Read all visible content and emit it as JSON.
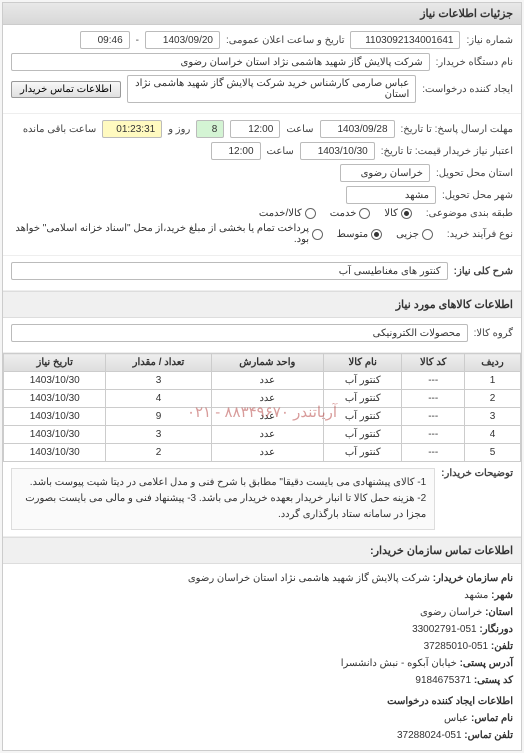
{
  "panel_title": "جزئیات اطلاعات نیاز",
  "header": {
    "req_no_label": "شماره نیاز:",
    "req_no": "1103092134001641",
    "ann_dt_label": "تاریخ و ساعت اعلان عمومی:",
    "ann_date": "1403/09/20",
    "ann_time": "09:46",
    "buyer_label": "نام دستگاه خریدار:",
    "buyer": "شرکت پالایش گاز شهید هاشمی نژاد   استان خراسان رضوی",
    "requester_label": "ایجاد کننده درخواست:",
    "requester": "عباس صارمی کارشناس خرید  شرکت پالایش گاز شهید هاشمی نژاد   استان",
    "contact_btn": "اطلاعات تماس خریدار"
  },
  "deadlines": {
    "send_label": "مهلت ارسال پاسخ: تا تاریخ:",
    "send_date": "1403/09/28",
    "time_lbl": "ساعت",
    "send_time": "12:00",
    "days": "8",
    "days_lbl": "روز و",
    "remain": "01:23:31",
    "remain_lbl": "ساعت باقی مانده",
    "valid_label": "اعتبار نیاز خریدار قیمت: تا تاریخ:",
    "valid_date": "1403/10/30",
    "valid_time": "12:00"
  },
  "loc": {
    "prov_lbl": "استان محل تحویل:",
    "prov": "خراسان رضوی",
    "city_lbl": "شهر محل تحویل:",
    "city": "مشهد"
  },
  "subject": {
    "pack_lbl": "طبقه بندی موضوعی:",
    "r1": "کالا",
    "r2": "خدمت",
    "r3": "کالا/خدمت",
    "proc_lbl": "نوع فرآیند خرید:",
    "p1": "جزیی",
    "p2": "متوسط",
    "p3": "پرداخت تمام یا بخشی از مبلغ خرید،از محل \"اسناد خزانه اسلامی\" خواهد بود."
  },
  "desc": {
    "lbl": "شرح کلی نیاز:",
    "val": "کنتور های مغناطیسی آب"
  },
  "items_title": "اطلاعات کالاهای مورد نیاز",
  "group": {
    "lbl": "گروه کالا:",
    "val": "محصولات الکترونیکی"
  },
  "table": {
    "cols": [
      "ردیف",
      "کد کالا",
      "نام کالا",
      "واحد شمارش",
      "تعداد / مقدار",
      "تاریخ نیاز"
    ],
    "rows": [
      [
        "1",
        "---",
        "کنتور آب",
        "عدد",
        "3",
        "1403/10/30"
      ],
      [
        "2",
        "---",
        "کنتور آب",
        "عدد",
        "4",
        "1403/10/30"
      ],
      [
        "3",
        "---",
        "کنتور آب",
        "عدد",
        "9",
        "1403/10/30"
      ],
      [
        "4",
        "---",
        "کنتور آب",
        "عدد",
        "3",
        "1403/10/30"
      ],
      [
        "5",
        "---",
        "کنتور آب",
        "عدد",
        "2",
        "1403/10/30"
      ]
    ],
    "watermark": "آریاتندر  ۸۸۳۴۹۶۷۰ - ۰۲۱"
  },
  "notes": {
    "lbl": "توضیحات خریدار:",
    "text": "1- کالای پیشنهادی می بایست دقیقا\" مطابق با شرح فنی و مدل اعلامی در دیتا شیت پیوست باشد. 2- هزینه حمل کالا تا انبار خریدار بعهده خریدار می باشد. 3- پیشنهاد فنی و مالی می بایست بصورت مجزا در سامانه ستاد بارگذاری گردد."
  },
  "contact_title": "اطلاعات تماس سازمان خریدار:",
  "contact": {
    "org_lbl": "نام سازمان خریدار:",
    "org": "شرکت پالایش گاز شهید هاشمی نژاد استان خراسان رضوی",
    "city_lbl": "شهر:",
    "city": "مشهد",
    "prov_lbl": "استان:",
    "prov": "خراسان رضوی",
    "fax_lbl": "دورنگار:",
    "fax": "051-33002791",
    "tel_lbl": "تلفن:",
    "tel": "051-37285010",
    "addr_lbl": "آدرس پستی:",
    "addr": "خیابان آبکوه - نبش دانشسرا",
    "post_lbl": "کد پستی:",
    "post": "9184675371",
    "creator_title": "اطلاعات ایجاد کننده درخواست",
    "name_lbl": "نام تماس:",
    "name": "عباس",
    "tel2_lbl": "تلفن تماس:",
    "tel2": "051-37288024"
  }
}
